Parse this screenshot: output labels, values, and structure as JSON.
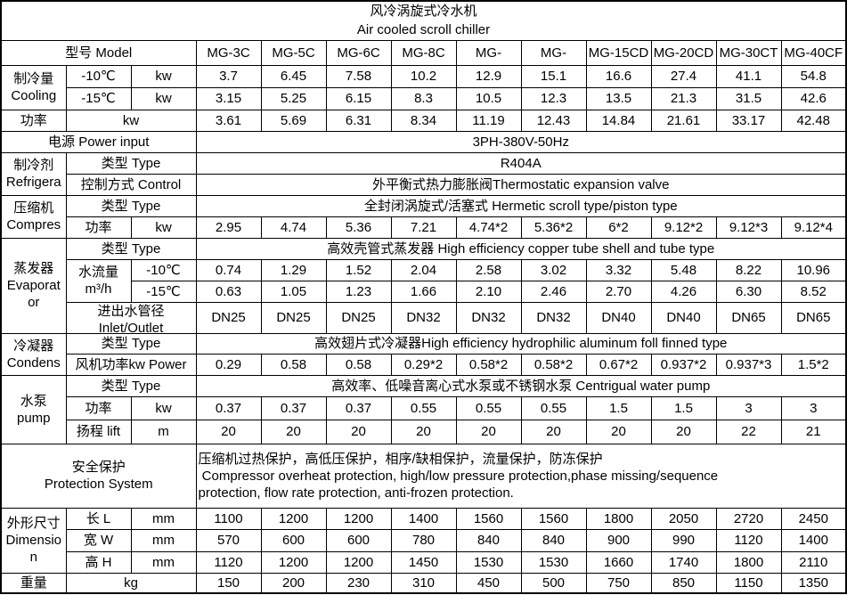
{
  "title": {
    "zh": "风冷涡旋式冷水机",
    "en": "Air cooled scroll chiller"
  },
  "model_row": {
    "label": "型号 Model",
    "models": [
      "MG-3C",
      "MG-5C",
      "MG-6C",
      "MG-8C",
      "MG-",
      "MG-",
      "MG-15CD",
      "MG-20CD",
      "MG-30CT",
      "MG-40CF"
    ]
  },
  "cooling": {
    "group": "制冷量\nCooling",
    "rows": [
      {
        "temp": "-10℃",
        "unit": "kw",
        "values": [
          "3.7",
          "6.45",
          "7.58",
          "10.2",
          "12.9",
          "15.1",
          "16.6",
          "27.4",
          "41.1",
          "54.8"
        ]
      },
      {
        "temp": "-15℃",
        "unit": "kw",
        "values": [
          "3.15",
          "5.25",
          "6.15",
          "8.3",
          "10.5",
          "12.3",
          "13.5",
          "21.3",
          "31.5",
          "42.6"
        ]
      }
    ]
  },
  "power": {
    "label": "功率",
    "unit": "kw",
    "values": [
      "3.61",
      "5.69",
      "6.31",
      "8.34",
      "11.19",
      "12.43",
      "14.84",
      "21.61",
      "33.17",
      "42.48"
    ]
  },
  "power_input": {
    "label": "电源 Power input",
    "value": "3PH-380V-50Hz"
  },
  "refrigerant": {
    "group": "制冷剂\nRefrigera",
    "type_label": "类型 Type",
    "type_value": "R404A",
    "control_label": "控制方式 Control",
    "control_value": "外平衡式热力膨胀阀Thermostatic expansion valve"
  },
  "compressor": {
    "group": "压缩机\nCompres",
    "type_label": "类型 Type",
    "type_value": "全封闭涡旋式/活塞式 Hermetic scroll type/piston type",
    "power_label": "功率",
    "power_unit": "kw",
    "power_values": [
      "2.95",
      "4.74",
      "5.36",
      "7.21",
      "4.74*2",
      "5.36*2",
      "6*2",
      "9.12*2",
      "9.12*3",
      "9.12*4"
    ]
  },
  "evaporator": {
    "group": "蒸发器\nEvaporat\nor",
    "type_label": "类型 Type",
    "type_value": "高效壳管式蒸发器 High efficiency copper tube shell and tube type",
    "flow_label": "水流量\nm³/h",
    "flow_rows": [
      {
        "temp": "-10℃",
        "values": [
          "0.74",
          "1.29",
          "1.52",
          "2.04",
          "2.58",
          "3.02",
          "3.32",
          "5.48",
          "8.22",
          "10.96"
        ]
      },
      {
        "temp": "-15℃",
        "values": [
          "0.63",
          "1.05",
          "1.23",
          "1.66",
          "2.10",
          "2.46",
          "2.70",
          "4.26",
          "6.30",
          "8.52"
        ]
      }
    ],
    "pipe_label": "进出水管径\nInlet/Outlet",
    "pipe_values": [
      "DN25",
      "DN25",
      "DN25",
      "DN32",
      "DN32",
      "DN32",
      "DN40",
      "DN40",
      "DN65",
      "DN65"
    ]
  },
  "condenser": {
    "group": "冷凝器\nCondens",
    "type_label": "类型 Type",
    "type_value": "高效翅片式冷凝器High efficiency hydrophilic aluminum foll finned type",
    "fan_label": "风机功率kw Power",
    "fan_values": [
      "0.29",
      "0.58",
      "0.58",
      "0.29*2",
      "0.58*2",
      "0.58*2",
      "0.67*2",
      "0.937*2",
      "0.937*3",
      "1.5*2"
    ]
  },
  "pump": {
    "group": "水泵\npump",
    "type_label": "类型 Type",
    "type_value": "高效率、低噪音离心式水泵或不锈钢水泵 Centrigual water pump",
    "power_label": "功率",
    "power_unit": "kw",
    "power_values": [
      "0.37",
      "0.37",
      "0.37",
      "0.55",
      "0.55",
      "0.55",
      "1.5",
      "1.5",
      "3",
      "3"
    ],
    "lift_label": "扬程 lift",
    "lift_unit": "m",
    "lift_values": [
      "20",
      "20",
      "20",
      "20",
      "20",
      "20",
      "20",
      "20",
      "22",
      "21"
    ]
  },
  "protection": {
    "label": "安全保护\nProtection System",
    "value": "压缩机过热保护，高低压保护，相序/缺相保护，流量保护，防冻保护\n Compressor overheat protection, high/low pressure protection,phase missing/sequence\nprotection, flow rate protection, anti-frozen protection."
  },
  "dimension": {
    "group": "外形尺寸\nDimensio\nn",
    "rows": [
      {
        "label": "长 L",
        "unit": "mm",
        "values": [
          "1100",
          "1200",
          "1200",
          "1400",
          "1560",
          "1560",
          "1800",
          "2050",
          "2720",
          "2450"
        ]
      },
      {
        "label": "宽 W",
        "unit": "mm",
        "values": [
          "570",
          "600",
          "600",
          "780",
          "840",
          "840",
          "900",
          "990",
          "1120",
          "1400"
        ]
      },
      {
        "label": "高 H",
        "unit": "mm",
        "values": [
          "1120",
          "1200",
          "1200",
          "1450",
          "1530",
          "1530",
          "1660",
          "1740",
          "1800",
          "2110"
        ]
      }
    ]
  },
  "weight": {
    "label": "重量",
    "unit": "kg",
    "values": [
      "150",
      "200",
      "230",
      "310",
      "450",
      "500",
      "750",
      "850",
      "1150",
      "1350"
    ]
  }
}
